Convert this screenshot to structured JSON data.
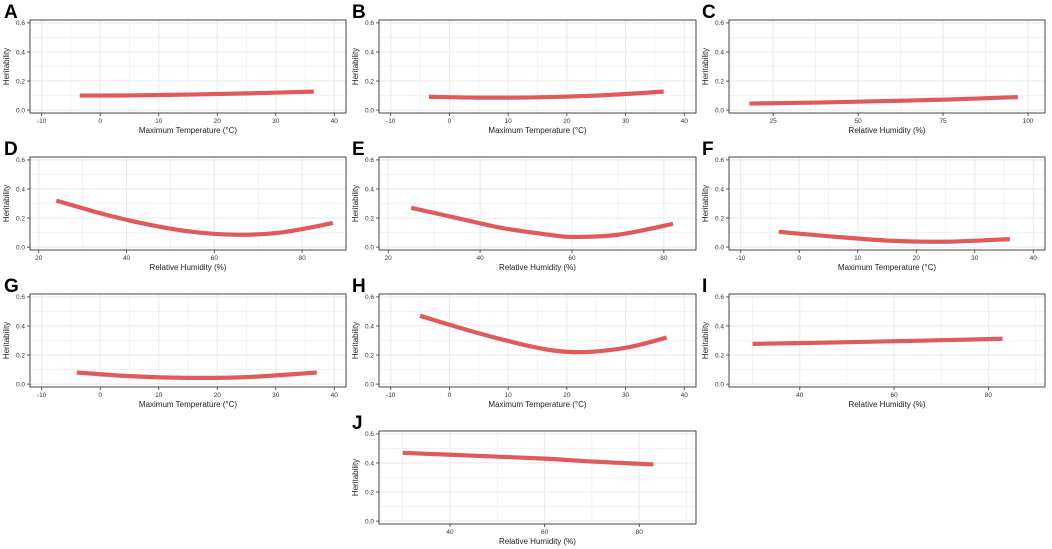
{
  "chart_data": [
    {
      "panel": "A",
      "type": "line",
      "xlabel": "Maximum Temperature (°C)",
      "ylabel": "Heritability",
      "xlim": [
        -12,
        42
      ],
      "ylim": [
        -0.02,
        0.62
      ],
      "xticks": [
        -10,
        0,
        10,
        20,
        30,
        40
      ],
      "xtick_labels": [
        "-10",
        "0",
        "10",
        "20",
        "30",
        "40"
      ],
      "yticks": [
        0.0,
        0.2,
        0.4,
        0.6
      ],
      "ytick_labels": [
        "0.0",
        "0.2",
        "0.4",
        "0.6"
      ],
      "grid": true,
      "curve": {
        "x": [
          -3.5,
          5,
          15,
          25,
          36.5
        ],
        "y": [
          0.1,
          0.101,
          0.107,
          0.115,
          0.127
        ]
      }
    },
    {
      "panel": "B",
      "type": "line",
      "xlabel": "Maximum Temperature (°C)",
      "ylabel": "Heritability",
      "xlim": [
        -12,
        42
      ],
      "ylim": [
        -0.02,
        0.62
      ],
      "xticks": [
        -10,
        0,
        10,
        20,
        30,
        40
      ],
      "xtick_labels": [
        "-10",
        "0",
        "10",
        "20",
        "30",
        "40"
      ],
      "yticks": [
        0.0,
        0.2,
        0.4,
        0.6
      ],
      "ytick_labels": [
        "0.0",
        "0.2",
        "0.4",
        "0.6"
      ],
      "grid": true,
      "curve": {
        "x": [
          -3.5,
          5,
          15,
          25,
          36.5
        ],
        "y": [
          0.092,
          0.086,
          0.088,
          0.1,
          0.127
        ]
      }
    },
    {
      "panel": "C",
      "type": "line",
      "xlabel": "Relative Humidity (%)",
      "ylabel": "Heritability",
      "xlim": [
        12,
        105
      ],
      "ylim": [
        -0.02,
        0.62
      ],
      "xticks": [
        25,
        50,
        75,
        100
      ],
      "xtick_labels": [
        "25",
        "50",
        "75",
        "100"
      ],
      "yticks": [
        0.0,
        0.2,
        0.4,
        0.6
      ],
      "ytick_labels": [
        "0.0",
        "0.2",
        "0.4",
        "0.6"
      ],
      "grid": true,
      "curve": {
        "x": [
          18,
          38,
          58,
          78,
          97
        ],
        "y": [
          0.045,
          0.052,
          0.062,
          0.074,
          0.09
        ]
      }
    },
    {
      "panel": "D",
      "type": "line",
      "xlabel": "Relative Humidity (%)",
      "ylabel": "Heritability",
      "xlim": [
        18,
        90
      ],
      "ylim": [
        -0.02,
        0.62
      ],
      "xticks": [
        20,
        40,
        60,
        80
      ],
      "xtick_labels": [
        "20",
        "40",
        "60",
        "80"
      ],
      "yticks": [
        0.0,
        0.2,
        0.4,
        0.6
      ],
      "ytick_labels": [
        "0.0",
        "0.2",
        "0.4",
        "0.6"
      ],
      "grid": true,
      "curve": {
        "x": [
          24,
          35,
          45,
          55,
          65,
          75,
          87
        ],
        "y": [
          0.32,
          0.225,
          0.155,
          0.105,
          0.085,
          0.1,
          0.165
        ]
      }
    },
    {
      "panel": "E",
      "type": "line",
      "xlabel": "Relative Humidity (%)",
      "ylabel": "Heritability",
      "xlim": [
        18,
        87
      ],
      "ylim": [
        -0.02,
        0.62
      ],
      "xticks": [
        20,
        40,
        60,
        80
      ],
      "xtick_labels": [
        "20",
        "40",
        "60",
        "80"
      ],
      "yticks": [
        0.0,
        0.2,
        0.4,
        0.6
      ],
      "ytick_labels": [
        "0.0",
        "0.2",
        "0.4",
        "0.6"
      ],
      "grid": true,
      "curve": {
        "x": [
          25,
          35,
          45,
          55,
          60,
          70,
          82
        ],
        "y": [
          0.27,
          0.2,
          0.13,
          0.085,
          0.07,
          0.085,
          0.16
        ]
      }
    },
    {
      "panel": "F",
      "type": "line",
      "xlabel": "Maximum Temperature (°C)",
      "ylabel": "Heritability",
      "xlim": [
        -12,
        42
      ],
      "ylim": [
        -0.02,
        0.62
      ],
      "xticks": [
        -10,
        0,
        10,
        20,
        30,
        40
      ],
      "xtick_labels": [
        "-10",
        "0",
        "10",
        "20",
        "30",
        "40"
      ],
      "yticks": [
        0.0,
        0.2,
        0.4,
        0.6
      ],
      "ytick_labels": [
        "0.0",
        "0.2",
        "0.4",
        "0.6"
      ],
      "grid": true,
      "curve": {
        "x": [
          -3.5,
          5,
          15,
          25,
          36
        ],
        "y": [
          0.105,
          0.075,
          0.045,
          0.037,
          0.055
        ]
      }
    },
    {
      "panel": "G",
      "type": "line",
      "xlabel": "Maximum Temperature (°C)",
      "ylabel": "Heritability",
      "xlim": [
        -12,
        42
      ],
      "ylim": [
        -0.02,
        0.62
      ],
      "xticks": [
        -10,
        0,
        10,
        20,
        30,
        40
      ],
      "xtick_labels": [
        "-10",
        "0",
        "10",
        "20",
        "30",
        "40"
      ],
      "yticks": [
        0.0,
        0.2,
        0.4,
        0.6
      ],
      "ytick_labels": [
        "0.0",
        "0.2",
        "0.4",
        "0.6"
      ],
      "grid": true,
      "curve": {
        "x": [
          -4,
          5,
          15,
          25,
          37
        ],
        "y": [
          0.08,
          0.055,
          0.043,
          0.048,
          0.08
        ]
      }
    },
    {
      "panel": "H",
      "type": "line",
      "xlabel": "Maximum Temperature (°C)",
      "ylabel": "Heritability",
      "xlim": [
        -12,
        42
      ],
      "ylim": [
        -0.02,
        0.62
      ],
      "xticks": [
        -10,
        0,
        10,
        20,
        30,
        40
      ],
      "xtick_labels": [
        "-10",
        "0",
        "10",
        "20",
        "30",
        "40"
      ],
      "yticks": [
        0.0,
        0.2,
        0.4,
        0.6
      ],
      "ytick_labels": [
        "0.0",
        "0.2",
        "0.4",
        "0.6"
      ],
      "grid": true,
      "curve": {
        "x": [
          -5,
          5,
          15,
          22,
          30,
          37
        ],
        "y": [
          0.47,
          0.35,
          0.25,
          0.22,
          0.25,
          0.32
        ]
      }
    },
    {
      "panel": "I",
      "type": "line",
      "xlabel": "Relative Humidity (%)",
      "ylabel": "Heritability",
      "xlim": [
        25,
        92
      ],
      "ylim": [
        -0.02,
        0.62
      ],
      "xticks": [
        40,
        60,
        80
      ],
      "xtick_labels": [
        "40",
        "60",
        "80"
      ],
      "yticks": [
        0.0,
        0.2,
        0.4,
        0.6
      ],
      "ytick_labels": [
        "0.0",
        "0.2",
        "0.4",
        "0.6"
      ],
      "grid": true,
      "curve": {
        "x": [
          30,
          45,
          60,
          70,
          83
        ],
        "y": [
          0.277,
          0.285,
          0.295,
          0.302,
          0.312
        ]
      }
    },
    {
      "panel": "J",
      "type": "line",
      "xlabel": "Relative Humidity (%)",
      "ylabel": "Heritability",
      "xlim": [
        25,
        92
      ],
      "ylim": [
        -0.02,
        0.62
      ],
      "xticks": [
        40,
        60,
        80
      ],
      "xtick_labels": [
        "40",
        "60",
        "80"
      ],
      "yticks": [
        0.0,
        0.2,
        0.4,
        0.6
      ],
      "ytick_labels": [
        "0.0",
        "0.2",
        "0.4",
        "0.6"
      ],
      "grid": true,
      "curve": {
        "x": [
          30,
          45,
          60,
          70,
          83
        ],
        "y": [
          0.47,
          0.45,
          0.43,
          0.41,
          0.39
        ]
      }
    }
  ],
  "colors": {
    "curve": "#e05a5a",
    "grid": "#ebebeb",
    "border": "#333333",
    "text": "#333333",
    "background": "#ffffff"
  }
}
